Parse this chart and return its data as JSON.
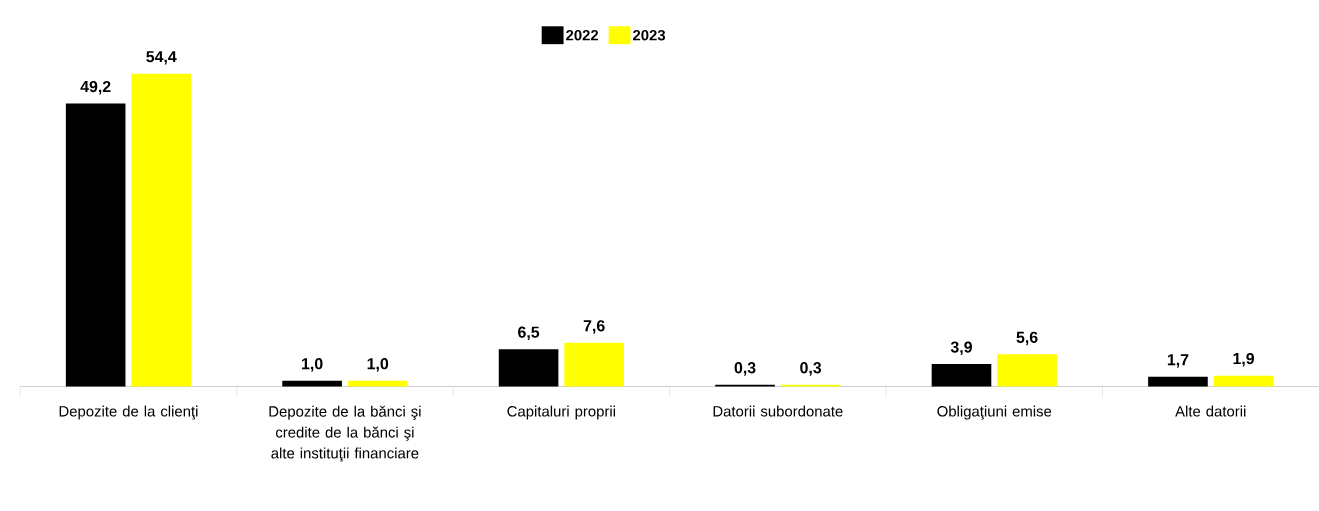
{
  "chart_data": {
    "type": "bar",
    "categories": [
      "Depozite de la clienţi",
      "Depozite de la bănci şi credite de la bănci şi alte instituţii financiare",
      "Capitaluri proprii",
      "Datorii subordonate",
      "Obligaţiuni emise",
      "Alte datorii"
    ],
    "series": [
      {
        "name": "2022",
        "color": "#000000",
        "values": [
          49.2,
          1.0,
          6.5,
          0.3,
          3.9,
          1.7
        ],
        "value_labels": [
          "49,2",
          "1,0",
          "6,5",
          "0,3",
          "3,9",
          "1,7"
        ]
      },
      {
        "name": "2023",
        "color": "#ffff00",
        "values": [
          54.4,
          1.0,
          7.6,
          0.3,
          5.6,
          1.9
        ],
        "value_labels": [
          "54,4",
          "1,0",
          "7,6",
          "0,3",
          "5,6",
          "1,9"
        ]
      }
    ],
    "legend": "top"
  }
}
